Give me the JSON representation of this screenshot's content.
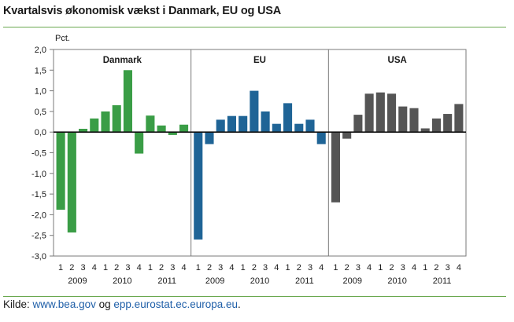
{
  "title": "Kvartalsvis økonomisk vækst i Danmark, EU og USA",
  "source": {
    "label": "Kilde:",
    "link1": "www.bea.gov",
    "conj": "og",
    "link2": "epp.eurostat.ec.europa.eu",
    "end": "."
  },
  "chart_data": {
    "type": "bar",
    "ylabel": "Pct.",
    "ylim": [
      -3.0,
      2.0
    ],
    "yticks": [
      "2,0",
      "1,5",
      "1,0",
      "0,5",
      "0,0",
      "-0,5",
      "-1,0",
      "-1,5",
      "-2,0",
      "-2,5",
      "-3,0"
    ],
    "quarter_labels": [
      "1",
      "2",
      "3",
      "4",
      "1",
      "2",
      "3",
      "4",
      "1",
      "2",
      "3",
      "4"
    ],
    "years": [
      "2009",
      "2010",
      "2011"
    ],
    "grid": false,
    "panels": [
      {
        "name": "Danmark",
        "color": "#3a9d46",
        "values": [
          -1.88,
          -2.43,
          0.08,
          0.33,
          0.5,
          0.65,
          1.5,
          -0.52,
          0.4,
          0.16,
          -0.07,
          0.18
        ]
      },
      {
        "name": "EU",
        "color": "#1f6496",
        "values": [
          -2.6,
          -0.29,
          0.3,
          0.39,
          0.39,
          1.0,
          0.5,
          0.2,
          0.7,
          0.2,
          0.3,
          -0.29
        ]
      },
      {
        "name": "USA",
        "color": "#555555",
        "values": [
          -1.7,
          -0.16,
          0.42,
          0.93,
          0.96,
          0.93,
          0.62,
          0.58,
          0.09,
          0.33,
          0.44,
          0.68
        ]
      }
    ]
  }
}
